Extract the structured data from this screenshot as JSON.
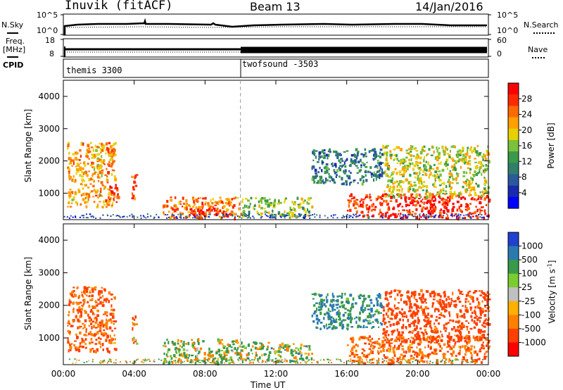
{
  "header": {
    "station": "Inuvik (fitACF)",
    "beam": "Beam 13",
    "date": "14/Jan/2016"
  },
  "strip": {
    "nsky_label": "N.Sky",
    "nsky_top": "10^5",
    "nsky_bottom": "10^0",
    "nsearch_label": "N.Search",
    "nsearch_top": "10^5",
    "nsearch_bottom": "10^0",
    "freq_label": "Freq.",
    "freq_unit": "[MHz]",
    "freq_top": "18",
    "freq_bottom": "8",
    "nave_label": "Nave",
    "nave_top": "60",
    "nave_bottom": "0",
    "cpid_label": "CPID",
    "cpid_1": "themis 3300",
    "cpid_2": "twofsound -3503"
  },
  "power_colorbar": {
    "label": "Power [dB]",
    "ticks": [
      "28",
      "24",
      "20",
      "16",
      "12",
      "8",
      "4"
    ],
    "colors": [
      "#ff0000",
      "#ff2a00",
      "#ff6a00",
      "#ffa000",
      "#e8d000",
      "#7ac23a",
      "#3a9a4a",
      "#2f7f6a",
      "#2a5a9c",
      "#1a2ab0",
      "#0000ff"
    ]
  },
  "velocity_colorbar": {
    "label": "Velocity [m s",
    "label_sup": "-1",
    "label_end": "]",
    "ticks": [
      "1000",
      "500",
      "100",
      "25",
      "-25",
      "-100",
      "-500",
      "-1000"
    ],
    "colors": [
      "#2040d0",
      "#2a7ab0",
      "#3a9a4a",
      "#7acc30",
      "#c0c0c0",
      "#ffb000",
      "#ff8000",
      "#ff4000",
      "#ff0000"
    ]
  },
  "axes": {
    "ylabel": "Slant Range [km]",
    "xlabel": "Time UT"
  },
  "chart_data": [
    {
      "type": "heatmap",
      "title": "Power",
      "ylabel": "Slant Range [km]",
      "xlabel": "",
      "xlim": [
        "00:00",
        "24:00"
      ],
      "ylim": [
        180,
        4500
      ],
      "y_ticks": [
        1000,
        2000,
        3000,
        4000
      ],
      "x_ticks": [
        "00:00",
        "04:00",
        "08:00",
        "12:00",
        "16:00",
        "20:00",
        "00:00"
      ],
      "colorbar_ticks": [
        4,
        8,
        12,
        16,
        20,
        24,
        28
      ],
      "colorbar_label": "Power [dB]",
      "cpid_change_time": "10:00",
      "echo_regions": [
        {
          "t0": 0.2,
          "t1": 2.9,
          "r0": 600,
          "r1": 2600,
          "power_db": 22
        },
        {
          "t0": 2.5,
          "t1": 3.1,
          "r0": 700,
          "r1": 1300,
          "power_db": 28
        },
        {
          "t0": 3.8,
          "t1": 4.1,
          "r0": 800,
          "r1": 1700,
          "power_db": 24
        },
        {
          "t0": 5.6,
          "t1": 10.0,
          "r0": 250,
          "r1": 900,
          "power_db": 24
        },
        {
          "t0": 7.0,
          "t1": 9.4,
          "r0": 350,
          "r1": 600,
          "power_db": 28
        },
        {
          "t0": 10.0,
          "t1": 14.0,
          "r0": 300,
          "r1": 900,
          "power_db": 16
        },
        {
          "t0": 16.0,
          "t1": 24.0,
          "r0": 250,
          "r1": 1000,
          "power_db": 28
        },
        {
          "t0": 18.0,
          "t1": 24.0,
          "r0": 900,
          "r1": 2500,
          "power_db": 18
        },
        {
          "t0": 14.0,
          "t1": 18.0,
          "r0": 1300,
          "r1": 2400,
          "power_db": 10
        }
      ]
    },
    {
      "type": "heatmap",
      "title": "Velocity",
      "ylabel": "Slant Range [km]",
      "xlabel": "Time UT",
      "xlim": [
        "00:00",
        "24:00"
      ],
      "ylim": [
        180,
        4500
      ],
      "y_ticks": [
        1000,
        2000,
        3000,
        4000
      ],
      "x_ticks": [
        "00:00",
        "04:00",
        "08:00",
        "12:00",
        "16:00",
        "20:00",
        "00:00"
      ],
      "colorbar_ticks": [
        1000,
        500,
        100,
        25,
        -25,
        -100,
        -500,
        -1000
      ],
      "colorbar_label": "Velocity [m s^-1]",
      "cpid_change_time": "10:00",
      "echo_regions": [
        {
          "t0": 0.2,
          "t1": 2.9,
          "r0": 600,
          "r1": 2600,
          "velocity": -300
        },
        {
          "t0": 3.8,
          "t1": 4.1,
          "r0": 800,
          "r1": 1700,
          "velocity": -200
        },
        {
          "t0": 5.6,
          "t1": 10.0,
          "r0": 250,
          "r1": 1000,
          "velocity": 50
        },
        {
          "t0": 10.0,
          "t1": 14.0,
          "r0": 300,
          "r1": 900,
          "velocity": 100
        },
        {
          "t0": 16.0,
          "t1": 24.0,
          "r0": 250,
          "r1": 1100,
          "velocity": -300
        },
        {
          "t0": 18.0,
          "t1": 24.0,
          "r0": 900,
          "r1": 2500,
          "velocity": -500
        },
        {
          "t0": 14.0,
          "t1": 18.0,
          "r0": 1300,
          "r1": 2400,
          "velocity": 300
        }
      ]
    }
  ]
}
